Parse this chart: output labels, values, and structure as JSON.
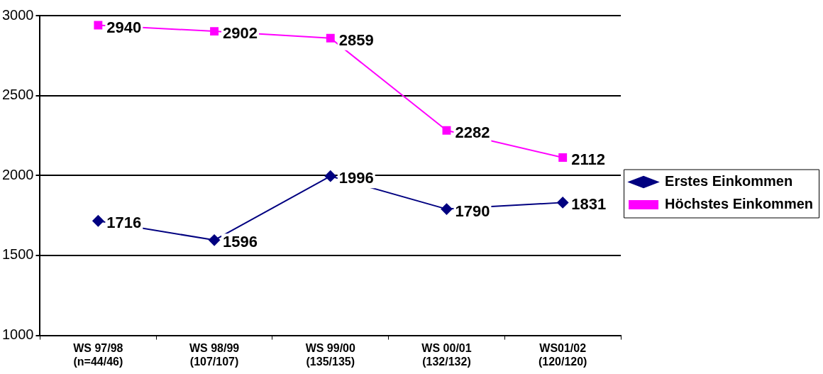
{
  "chart_data": {
    "type": "line",
    "categories": [
      "WS 97/98\n(n=44/46)",
      "WS 98/99\n(107/107)",
      "WS 99/00\n(135/135)",
      "WS 00/01\n(132/132)",
      "WS01/02\n(120/120)"
    ],
    "series": [
      {
        "name": "Erstes Einkommen",
        "color": "#000080",
        "marker": "diamond",
        "values": [
          1716,
          1596,
          1996,
          1790,
          1831
        ]
      },
      {
        "name": "Höchstes Einkommen",
        "color": "#ff00ff",
        "marker": "square",
        "values": [
          2940,
          2902,
          2859,
          2282,
          2112
        ]
      }
    ],
    "ylim": [
      1000,
      3000
    ],
    "yticks": [
      1000,
      1500,
      2000,
      2500,
      3000
    ],
    "grid": "y",
    "legend": "right",
    "data_labels": true,
    "line_style": "solid"
  }
}
